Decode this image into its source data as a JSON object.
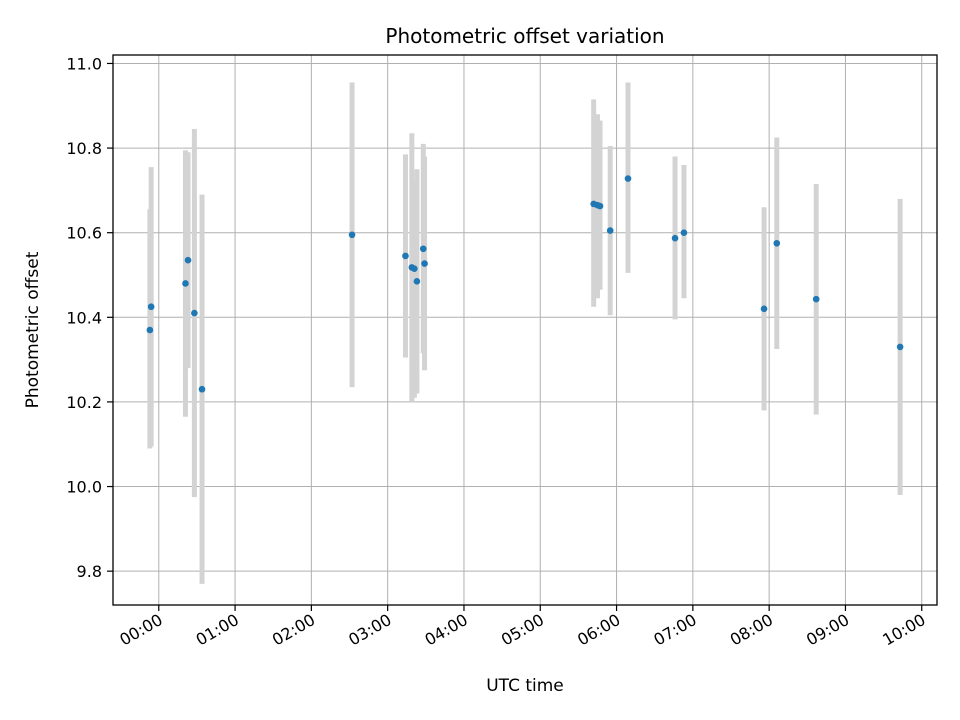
{
  "chart_data": {
    "type": "scatter",
    "title": "Photometric offset variation",
    "xlabel": "UTC time",
    "ylabel": "Photometric offset",
    "x_unit": "hours",
    "xlim": [
      -0.6,
      10.2
    ],
    "ylim": [
      9.72,
      11.02
    ],
    "x_ticks": [
      0,
      1,
      2,
      3,
      4,
      5,
      6,
      7,
      8,
      9,
      10
    ],
    "x_tick_labels": [
      "00:00",
      "01:00",
      "02:00",
      "03:00",
      "04:00",
      "05:00",
      "06:00",
      "07:00",
      "08:00",
      "09:00",
      "10:00"
    ],
    "y_ticks": [
      9.8,
      10.0,
      10.2,
      10.4,
      10.6,
      10.8,
      11.0
    ],
    "y_tick_labels": [
      "9.8",
      "10.0",
      "10.2",
      "10.4",
      "10.6",
      "10.8",
      "11.0"
    ],
    "grid": true,
    "marker_color": "#1f77b4",
    "errorbar_color": "#d3d3d3",
    "series": [
      {
        "points": [
          {
            "x": "23:53",
            "y": 10.37,
            "err_low": 10.09,
            "err_high": 10.655
          },
          {
            "x": "23:54",
            "y": 10.425,
            "err_low": 10.095,
            "err_high": 10.755
          },
          {
            "x": "00:21",
            "y": 10.48,
            "err_low": 10.165,
            "err_high": 10.795
          },
          {
            "x": "00:23",
            "y": 10.535,
            "err_low": 10.28,
            "err_high": 10.79
          },
          {
            "x": "00:28",
            "y": 10.41,
            "err_low": 9.975,
            "err_high": 10.845
          },
          {
            "x": "00:34",
            "y": 10.23,
            "err_low": 9.77,
            "err_high": 10.69
          },
          {
            "x": "02:32",
            "y": 10.595,
            "err_low": 10.235,
            "err_high": 10.955
          },
          {
            "x": "03:14",
            "y": 10.545,
            "err_low": 10.305,
            "err_high": 10.785
          },
          {
            "x": "03:19",
            "y": 10.518,
            "err_low": 10.2,
            "err_high": 10.835
          },
          {
            "x": "03:21",
            "y": 10.515,
            "err_low": 10.21,
            "err_high": 10.72
          },
          {
            "x": "03:23",
            "y": 10.485,
            "err_low": 10.22,
            "err_high": 10.75
          },
          {
            "x": "03:28",
            "y": 10.562,
            "err_low": 10.315,
            "err_high": 10.81
          },
          {
            "x": "03:29",
            "y": 10.527,
            "err_low": 10.275,
            "err_high": 10.78
          },
          {
            "x": "05:42",
            "y": 10.668,
            "err_low": 10.425,
            "err_high": 10.915
          },
          {
            "x": "05:45",
            "y": 10.665,
            "err_low": 10.445,
            "err_high": 10.88
          },
          {
            "x": "05:47",
            "y": 10.663,
            "err_low": 10.465,
            "err_high": 10.865
          },
          {
            "x": "05:55",
            "y": 10.605,
            "err_low": 10.405,
            "err_high": 10.805
          },
          {
            "x": "06:09",
            "y": 10.728,
            "err_low": 10.505,
            "err_high": 10.955
          },
          {
            "x": "06:46",
            "y": 10.587,
            "err_low": 10.395,
            "err_high": 10.78
          },
          {
            "x": "06:53",
            "y": 10.6,
            "err_low": 10.445,
            "err_high": 10.76
          },
          {
            "x": "07:56",
            "y": 10.42,
            "err_low": 10.18,
            "err_high": 10.66
          },
          {
            "x": "08:06",
            "y": 10.575,
            "err_low": 10.325,
            "err_high": 10.825
          },
          {
            "x": "08:37",
            "y": 10.443,
            "err_low": 10.17,
            "err_high": 10.715
          },
          {
            "x": "09:43",
            "y": 10.33,
            "err_low": 9.98,
            "err_high": 10.68
          }
        ]
      }
    ]
  }
}
